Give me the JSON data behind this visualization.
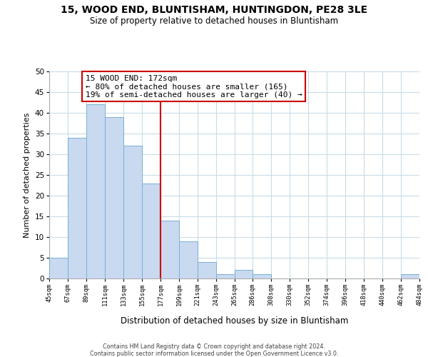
{
  "title1": "15, WOOD END, BLUNTISHAM, HUNTINGDON, PE28 3LE",
  "title2": "Size of property relative to detached houses in Bluntisham",
  "xlabel": "Distribution of detached houses by size in Bluntisham",
  "ylabel": "Number of detached properties",
  "bar_edges": [
    45,
    67,
    89,
    111,
    133,
    155,
    177,
    199,
    221,
    243,
    265,
    286,
    308,
    330,
    352,
    374,
    396,
    418,
    440,
    462,
    484
  ],
  "bar_heights": [
    5,
    34,
    42,
    39,
    32,
    23,
    14,
    9,
    4,
    1,
    2,
    1,
    0,
    0,
    0,
    0,
    0,
    0,
    0,
    1
  ],
  "bar_color": "#c9d9f0",
  "bar_edge_color": "#7ab0d4",
  "vline_x": 177,
  "vline_color": "#cc0000",
  "annotation_title": "15 WOOD END: 172sqm",
  "annotation_line1": "← 80% of detached houses are smaller (165)",
  "annotation_line2": "19% of semi-detached houses are larger (40) →",
  "annotation_box_color": "#ffffff",
  "annotation_box_edge": "#cc0000",
  "tick_labels": [
    "45sqm",
    "67sqm",
    "89sqm",
    "111sqm",
    "133sqm",
    "155sqm",
    "177sqm",
    "199sqm",
    "221sqm",
    "243sqm",
    "265sqm",
    "286sqm",
    "308sqm",
    "330sqm",
    "352sqm",
    "374sqm",
    "396sqm",
    "418sqm",
    "440sqm",
    "462sqm",
    "484sqm"
  ],
  "ylim": [
    0,
    50
  ],
  "yticks": [
    0,
    5,
    10,
    15,
    20,
    25,
    30,
    35,
    40,
    45,
    50
  ],
  "footer1": "Contains HM Land Registry data © Crown copyright and database right 2024.",
  "footer2": "Contains public sector information licensed under the Open Government Licence v3.0."
}
